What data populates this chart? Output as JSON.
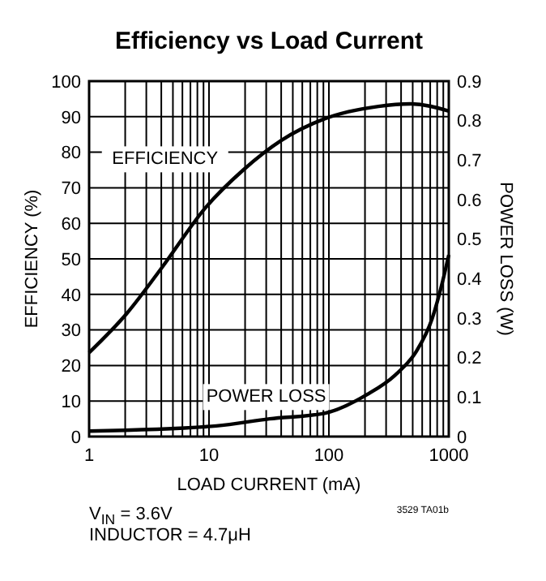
{
  "chart_data": {
    "type": "line",
    "title": "Efficiency vs Load Current",
    "xlabel": "LOAD CURRENT (mA)",
    "ylabel": "EFFICIENCY (%)",
    "y2label": "POWER LOSS (W)",
    "log": "x",
    "grid": true,
    "line_style": "solid",
    "marker": "none",
    "xlim": [
      1,
      1000
    ],
    "xticks": [
      1,
      {
        "value": 2,
        "label": null
      },
      {
        "value": 3,
        "label": null
      },
      {
        "value": 4,
        "label": null
      },
      {
        "value": 5,
        "label": null
      },
      {
        "value": 6,
        "label": null
      },
      {
        "value": 7,
        "label": null
      },
      {
        "value": 8,
        "label": null
      },
      {
        "value": 9,
        "label": null
      },
      10,
      {
        "value": 20,
        "label": null
      },
      {
        "value": 30,
        "label": null
      },
      {
        "value": 40,
        "label": null
      },
      {
        "value": 50,
        "label": null
      },
      {
        "value": 60,
        "label": null
      },
      {
        "value": 70,
        "label": null
      },
      {
        "value": 80,
        "label": null
      },
      {
        "value": 90,
        "label": null
      },
      100,
      {
        "value": 200,
        "label": null
      },
      {
        "value": 300,
        "label": null
      },
      {
        "value": 400,
        "label": null
      },
      {
        "value": 500,
        "label": null
      },
      {
        "value": 600,
        "label": null
      },
      {
        "value": 700,
        "label": null
      },
      {
        "value": 800,
        "label": null
      },
      {
        "value": 900,
        "label": null
      },
      1000
    ],
    "ylim": [
      0,
      100
    ],
    "yticks": [
      0,
      10,
      20,
      30,
      40,
      50,
      60,
      70,
      80,
      90,
      100
    ],
    "y2lim": [
      0,
      0.9
    ],
    "y2ticks": [
      0,
      0.1,
      0.2,
      0.3,
      0.4,
      0.5,
      0.6,
      0.7,
      0.8,
      0.9
    ],
    "series": [
      {
        "name": "EFFICIENCY",
        "color": "#000000",
        "x": [
          1,
          2.07,
          4.06,
          9.3,
          19.3,
          40,
          92,
          259,
          480,
          1000
        ],
        "values": [
          23.6,
          34.7,
          47.6,
          64.3,
          75,
          83.3,
          89.4,
          92.9,
          93.6,
          91.6
        ]
      },
      {
        "name": "POWER LOSS",
        "color": "#000000",
        "axis": "y2",
        "x": [
          1,
          11.5,
          32,
          92,
          210,
          355,
          537,
          725,
          890,
          1000
        ],
        "values": [
          0.014,
          0.027,
          0.045,
          0.059,
          0.107,
          0.155,
          0.216,
          0.298,
          0.394,
          0.46
        ]
      }
    ],
    "annotations": [
      "V$_{IN}$ = 3.6V",
      "INDUCTOR = 4.7μH",
      "3529 TA01b"
    ]
  }
}
